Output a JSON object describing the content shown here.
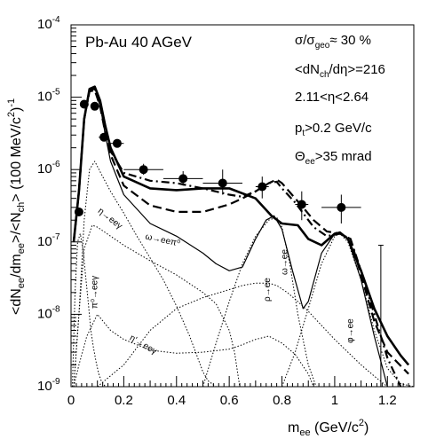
{
  "chart_data": {
    "type": "line",
    "title": "Pb-Au 40 AGeV",
    "info_lines": [
      "σ/σgeo≈ 30 %",
      "<dNch/dη>=216",
      "2.11<η<2.64",
      "pt>0.2 GeV/c",
      "Θee>35 mrad"
    ],
    "xlabel": "m_ee (GeV/c²)",
    "ylabel": "<dN_ee/dm_ee>/<N_ch> (100 MeV/c²)⁻¹",
    "xlim": [
      0,
      1.3
    ],
    "ylim": [
      1e-09,
      0.0001
    ],
    "y_scale": "log",
    "x_ticks": [
      "0",
      "0.2",
      "0.4",
      "0.6",
      "0.8",
      "1",
      "1.2"
    ],
    "y_tick_exponents": [
      "-9",
      "-8",
      "-7",
      "-6",
      "-5",
      "-4"
    ],
    "annotations": [
      {
        "text": "η→eeγ",
        "x": 0.1,
        "y": 2.6e-07,
        "rotate": 38
      },
      {
        "text": "ω→eeπ⁰",
        "x": 0.28,
        "y": 1.1e-07,
        "rotate": 12
      },
      {
        "text": "π⁰→eeγ",
        "x": 0.1,
        "y": 1.2e-08,
        "rotate": -90
      },
      {
        "text": "η'→eeγ",
        "x": 0.22,
        "y": 4.5e-09,
        "rotate": 30
      },
      {
        "text": "ρ→ee",
        "x": 0.755,
        "y": 1.5e-08,
        "rotate": -90
      },
      {
        "text": "ω→ee",
        "x": 0.82,
        "y": 3.5e-08,
        "rotate": -90
      },
      {
        "text": "φ→ee",
        "x": 1.07,
        "y": 4e-09,
        "rotate": -90
      }
    ],
    "data_points": [
      {
        "x": 0.03,
        "y": 2.6e-07,
        "xerr": 0.0,
        "ylo": 2.6e-07,
        "yhi": 2.6e-07
      },
      {
        "x": 0.05,
        "y": 8e-06,
        "xerr": 0.01,
        "ylo": 8e-06,
        "yhi": 8e-06
      },
      {
        "x": 0.09,
        "y": 7.5e-06,
        "xerr": 0.01,
        "ylo": 7.5e-06,
        "yhi": 7.5e-06
      },
      {
        "x": 0.125,
        "y": 2.8e-06,
        "xerr": 0.02,
        "ylo": 2.5e-06,
        "yhi": 3.1e-06
      },
      {
        "x": 0.175,
        "y": 2.3e-06,
        "xerr": 0.025,
        "ylo": 2e-06,
        "yhi": 2.6e-06
      },
      {
        "x": 0.275,
        "y": 1e-06,
        "xerr": 0.075,
        "ylo": 8.5e-07,
        "yhi": 1.2e-06
      },
      {
        "x": 0.425,
        "y": 7.5e-07,
        "xerr": 0.075,
        "ylo": 6e-07,
        "yhi": 9.5e-07
      },
      {
        "x": 0.575,
        "y": 6.5e-07,
        "xerr": 0.075,
        "ylo": 4.5e-07,
        "yhi": 1e-06
      },
      {
        "x": 0.725,
        "y": 5.8e-07,
        "xerr": 0.025,
        "ylo": 4e-07,
        "yhi": 8e-07
      },
      {
        "x": 0.875,
        "y": 3.3e-07,
        "xerr": 0.025,
        "ylo": 2e-07,
        "yhi": 5e-07
      },
      {
        "x": 1.025,
        "y": 3e-07,
        "xerr": 0.075,
        "ylo": 1.8e-07,
        "yhi": 4.5e-07
      }
    ],
    "upper_limit_bar": {
      "x": 1.175,
      "ylo": 1e-09,
      "yhi": 9e-08
    },
    "series": [
      {
        "style": "solid-thick",
        "x": [
          0.01,
          0.03,
          0.05,
          0.07,
          0.09,
          0.11,
          0.13,
          0.15,
          0.2,
          0.3,
          0.4,
          0.5,
          0.6,
          0.7,
          0.76,
          0.8,
          0.86,
          0.9,
          0.95,
          1.0,
          1.02,
          1.05,
          1.1,
          1.15,
          1.2,
          1.25,
          1.28
        ],
        "y": [
          1e-07,
          5e-07,
          5e-06,
          1.3e-05,
          1.4e-05,
          9e-06,
          4e-06,
          2e-06,
          8e-07,
          5.5e-07,
          5.2e-07,
          5.5e-07,
          5.5e-07,
          4e-07,
          2.3e-07,
          1.8e-07,
          1.7e-07,
          1.1e-07,
          9e-08,
          1.3e-07,
          1.35e-07,
          1.1e-07,
          4e-08,
          1.2e-08,
          5e-09,
          2.7e-09,
          2e-09
        ]
      },
      {
        "style": "dashdot",
        "x": [
          0.01,
          0.03,
          0.05,
          0.07,
          0.09,
          0.11,
          0.13,
          0.15,
          0.2,
          0.3,
          0.4,
          0.5,
          0.6,
          0.65,
          0.7,
          0.75,
          0.78,
          0.8,
          0.85,
          0.88,
          0.92,
          0.97,
          1.02,
          1.06,
          1.1,
          1.15,
          1.2,
          1.25
        ],
        "y": [
          1e-07,
          5e-07,
          5e-06,
          1.25e-05,
          1.3e-05,
          8e-06,
          3.5e-06,
          1.8e-06,
          9e-07,
          7e-07,
          6.5e-07,
          5.5e-07,
          4.5e-07,
          4.2e-07,
          5e-07,
          6.5e-07,
          6.8e-07,
          5.5e-07,
          3.5e-07,
          2.5e-07,
          1.6e-07,
          1.2e-07,
          1.3e-07,
          1.1e-07,
          4e-08,
          1e-08,
          2.5e-09,
          1e-09
        ]
      },
      {
        "style": "dashed",
        "x": [
          0.01,
          0.03,
          0.05,
          0.07,
          0.09,
          0.11,
          0.13,
          0.15,
          0.2,
          0.3,
          0.4,
          0.5,
          0.6,
          0.65,
          0.7,
          0.75,
          0.78,
          0.8,
          0.85,
          0.88,
          0.92,
          0.97,
          1.02,
          1.06,
          1.1,
          1.15,
          1.2,
          1.28
        ],
        "y": [
          1e-07,
          5e-07,
          5e-06,
          1.2e-05,
          1.25e-05,
          7.5e-06,
          3.2e-06,
          1.6e-06,
          6e-07,
          3.2e-07,
          2.6e-07,
          2.6e-07,
          3.3e-07,
          4e-07,
          5e-07,
          6.5e-07,
          7.3e-07,
          6.5e-07,
          4e-07,
          3e-07,
          2e-07,
          1.4e-07,
          1.3e-07,
          1.1e-07,
          3.5e-08,
          8e-09,
          3e-09,
          1.5e-09
        ]
      },
      {
        "style": "solid-thin",
        "x": [
          0.01,
          0.03,
          0.05,
          0.07,
          0.09,
          0.11,
          0.13,
          0.15,
          0.2,
          0.3,
          0.4,
          0.5,
          0.55,
          0.6,
          0.65,
          0.7,
          0.74,
          0.77,
          0.8,
          0.84,
          0.88,
          0.9,
          0.95,
          1.0,
          1.02,
          1.05,
          1.1,
          1.15,
          1.2
        ],
        "y": [
          1e-07,
          5e-07,
          5e-06,
          1.3e-05,
          1.35e-05,
          8e-06,
          3e-06,
          1.3e-06,
          4.5e-07,
          1.8e-07,
          1.2e-07,
          7e-08,
          5e-08,
          4e-08,
          4.5e-08,
          1.1e-07,
          2e-07,
          2.3e-07,
          1.5e-07,
          4e-08,
          1.2e-08,
          1.5e-08,
          7e-08,
          1.3e-07,
          1.35e-07,
          1.1e-07,
          3e-08,
          5e-09,
          1e-09
        ]
      },
      {
        "style": "dotted",
        "label": "η→eeγ",
        "x": [
          0.01,
          0.03,
          0.05,
          0.07,
          0.09,
          0.12,
          0.15,
          0.2,
          0.25,
          0.3,
          0.35,
          0.4,
          0.45,
          0.5,
          0.52,
          0.55
        ],
        "y": [
          1e-09,
          1e-08,
          2e-07,
          1e-06,
          1.3e-06,
          8e-07,
          5e-07,
          2.5e-07,
          1.2e-07,
          6e-08,
          3e-08,
          1.3e-08,
          5e-09,
          1.6e-09,
          1.2e-09,
          1e-09
        ]
      },
      {
        "style": "dotted",
        "label": "ω→eeπ⁰",
        "x": [
          0.01,
          0.03,
          0.05,
          0.08,
          0.1,
          0.15,
          0.2,
          0.3,
          0.4,
          0.5,
          0.55,
          0.6,
          0.62,
          0.64
        ],
        "y": [
          1e-09,
          1e-08,
          8e-08,
          1.7e-07,
          1.6e-07,
          1.2e-07,
          9e-08,
          5.5e-08,
          3.5e-08,
          2e-08,
          1.4e-08,
          6e-09,
          3e-09,
          1e-09
        ]
      },
      {
        "style": "dotted",
        "label": "π⁰→eeγ",
        "x": [
          0.005,
          0.015,
          0.025,
          0.035,
          0.045,
          0.055,
          0.065,
          0.075,
          0.085,
          0.095,
          0.105,
          0.115,
          0.13
        ],
        "y": [
          1e-09,
          2e-08,
          1e-07,
          1.3e-07,
          8e-08,
          3.5e-08,
          1.5e-08,
          6e-09,
          3.5e-09,
          2.2e-09,
          1.5e-09,
          1.2e-09,
          1e-09
        ]
      },
      {
        "style": "dotted",
        "label": "η'→eeγ",
        "x": [
          0.01,
          0.03,
          0.06,
          0.1,
          0.15,
          0.2,
          0.3,
          0.4,
          0.5,
          0.6,
          0.65,
          0.7,
          0.75,
          0.8,
          0.85,
          0.9,
          0.92
        ],
        "y": [
          1e-09,
          2e-09,
          5e-09,
          1e-08,
          6e-09,
          4.5e-09,
          3.2e-09,
          2.9e-09,
          3e-09,
          3.3e-09,
          3.8e-09,
          4.5e-09,
          5e-09,
          4e-09,
          2.8e-09,
          1.5e-09,
          1e-09
        ]
      },
      {
        "style": "dotted",
        "label": "ρ→ee",
        "x": [
          0.1,
          0.2,
          0.3,
          0.4,
          0.5,
          0.6,
          0.65,
          0.7,
          0.75,
          0.78,
          0.82,
          0.86,
          0.9,
          0.95,
          1.0,
          1.05,
          1.1,
          1.15,
          1.2
        ],
        "y": [
          1e-09,
          2e-09,
          6e-09,
          1.2e-08,
          1.7e-08,
          2.2e-08,
          2.5e-08,
          2.7e-08,
          2.7e-08,
          2.5e-08,
          2e-08,
          1.5e-08,
          1.1e-08,
          7e-09,
          4.5e-09,
          3e-09,
          2e-09,
          1.4e-09,
          1e-09
        ]
      },
      {
        "style": "dotted",
        "label": "ω→ee",
        "x": [
          0.5,
          0.55,
          0.6,
          0.65,
          0.7,
          0.75,
          0.78,
          0.8,
          0.83,
          0.86,
          0.9,
          0.93
        ],
        "y": [
          1e-09,
          4e-09,
          1.5e-08,
          5e-08,
          1.2e-07,
          2e-07,
          2.2e-07,
          1.6e-07,
          5e-08,
          1e-08,
          2e-09,
          1e-09
        ]
      },
      {
        "style": "dotted",
        "label": "φ→ee",
        "x": [
          0.8,
          0.85,
          0.9,
          0.95,
          1.0,
          1.02,
          1.05,
          1.1,
          1.15,
          1.2,
          1.25,
          1.3
        ],
        "y": [
          1e-09,
          3e-09,
          1.2e-08,
          5e-08,
          1.2e-07,
          1.3e-07,
          1e-07,
          3e-08,
          6e-09,
          1.8e-09,
          1.1e-09,
          1e-09
        ]
      }
    ]
  }
}
